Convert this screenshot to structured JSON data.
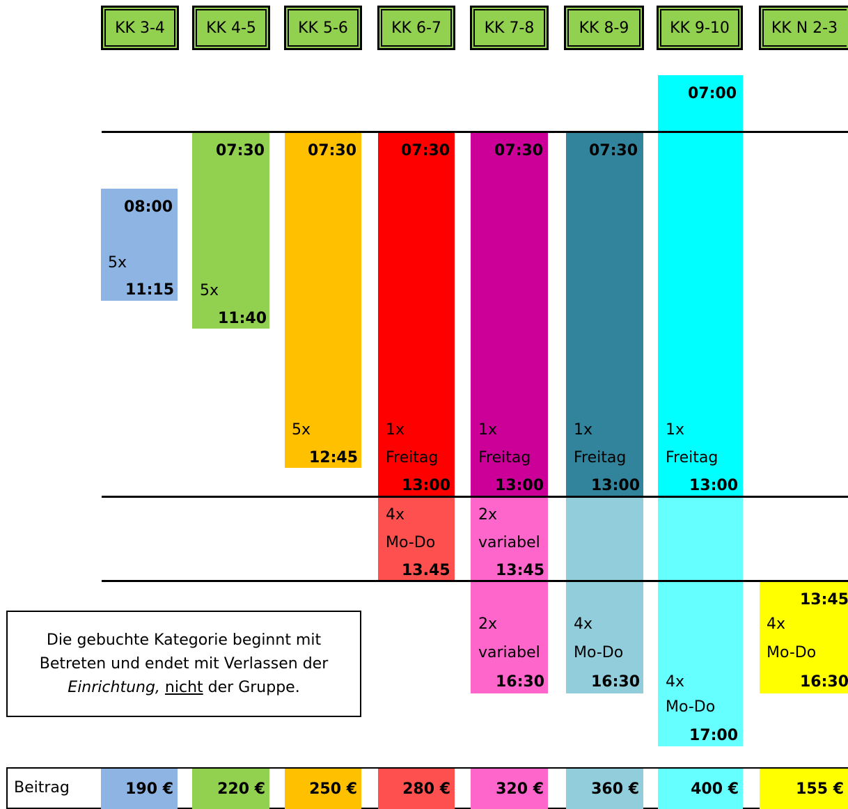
{
  "headers": [
    "KK 3-4",
    "KK 4-5",
    "KK 5-6",
    "KK 6-7",
    "KK 7-8",
    "KK 8-9",
    "KK 9-10",
    "KK N 2-3"
  ],
  "colors": {
    "blue": "#8db4e2",
    "green": "#92d050",
    "orange": "#ffc000",
    "red": "#ff0000",
    "red_light": "#ff5050",
    "magenta": "#cc0099",
    "pink": "#ff66cc",
    "teal": "#31849b",
    "teal_light": "#92cddc",
    "cyan": "#00ffff",
    "cyan_light": "#66ffff",
    "yellow": "#ffff00"
  },
  "kk34": {
    "start": "08:00",
    "count": "5x",
    "end": "11:15"
  },
  "kk45": {
    "start": "07:30",
    "count": "5x",
    "end": "11:40"
  },
  "kk56": {
    "start": "07:30",
    "count": "5x",
    "end": "12:45"
  },
  "kk67": {
    "start": "07:30",
    "count": "1x",
    "day": "Freitag",
    "end": "13:00",
    "count2": "4x",
    "days2": "Mo-Do",
    "end2": "13.45"
  },
  "kk78": {
    "start": "07:30",
    "count": "1x",
    "day": "Freitag",
    "end": "13:00",
    "count2": "2x",
    "days2": "variabel",
    "end2": "13:45",
    "count3": "2x",
    "days3": "variabel",
    "end3": "16:30"
  },
  "kk89": {
    "start": "07:30",
    "count": "1x",
    "day": "Freitag",
    "end": "13:00",
    "count3": "4x",
    "days3": "Mo-Do",
    "end3": "16:30"
  },
  "kk910": {
    "start": "07:00",
    "count": "1x",
    "day": "Freitag",
    "end": "13:00",
    "count3": "4x",
    "days3": "Mo-Do",
    "end3": "17:00"
  },
  "kkn23": {
    "start": "13:45",
    "count": "4x",
    "days": "Mo-Do",
    "end": "16:30"
  },
  "note": {
    "line1": "Die gebuchte Kategorie beginnt mit",
    "line2": "Betreten und endet mit Verlassen der",
    "line3a": "Einrichtung, ",
    "line3b": "nicht",
    "line3c": " der Gruppe."
  },
  "fees": {
    "label": "Beitrag",
    "values": [
      "190 €",
      "220 €",
      "250 €",
      "280 €",
      "320 €",
      "360 €",
      "400 €",
      "155 €"
    ]
  }
}
